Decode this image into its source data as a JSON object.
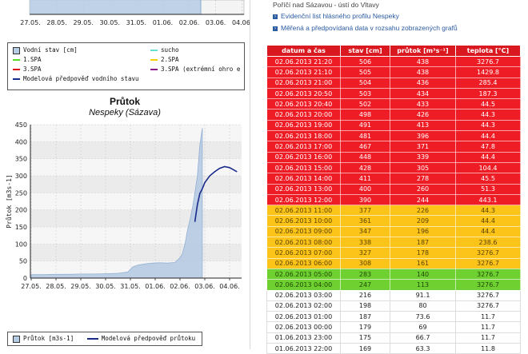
{
  "top_chart": {
    "x_ticks": [
      "27.05.",
      "28.05.",
      "29.05.",
      "30.05.",
      "31.05.",
      "01.06.",
      "02.06.",
      "03.06.",
      "04.06."
    ],
    "legend": [
      {
        "label": "Vodní stav [cm]",
        "kind": "square",
        "color": "#b6cbe4"
      },
      {
        "label": "sucho",
        "kind": "line",
        "color": "#66e0d0"
      },
      {
        "label": "1.SPA",
        "kind": "line",
        "color": "#55dd22"
      },
      {
        "label": "2.SPA",
        "kind": "line",
        "color": "#f4d000"
      },
      {
        "label": "3.SPA",
        "kind": "line",
        "color": "#e01010"
      },
      {
        "label": "3.SPA (extrémní ohro e",
        "kind": "line",
        "color": "#8a1a8a"
      },
      {
        "label": "Modelová předpověď vodního stavu",
        "kind": "line",
        "color": "#1a2a8a"
      }
    ]
  },
  "chart_data": {
    "type": "area",
    "title": "Průtok",
    "subtitle": "Nespeky (Sázava)",
    "ylabel": "Průtok [m3s-1]",
    "xlabel": "",
    "ylim": [
      0,
      450
    ],
    "y_ticks": [
      0,
      50,
      100,
      150,
      200,
      250,
      300,
      350,
      400,
      450
    ],
    "x_ticks": [
      "27.05.",
      "28.05.",
      "29.05.",
      "30.05.",
      "31.05.",
      "01.06.",
      "02.06.",
      "03.06.",
      "04.06."
    ],
    "series": [
      {
        "name": "Průtok [m3s-1]",
        "kind": "area",
        "color": "#b6cbe4",
        "x": [
          0,
          0.5,
          1,
          1.5,
          2,
          2.5,
          3,
          3.5,
          3.9,
          4.1,
          4.3,
          4.6,
          4.9,
          5.2,
          5.5,
          5.8,
          6.0,
          6.1,
          6.2,
          6.3,
          6.4,
          6.5,
          6.6,
          6.7,
          6.8,
          6.9
        ],
        "values": [
          10,
          10,
          11,
          11,
          12,
          12,
          13,
          14,
          18,
          33,
          38,
          42,
          44,
          45,
          44,
          46,
          60,
          72,
          100,
          140,
          170,
          205,
          250,
          300,
          390,
          440
        ]
      },
      {
        "name": "Modelová předpověď průtoku",
        "kind": "line",
        "color": "#1a2a8a",
        "x": [
          6.6,
          6.7,
          6.8,
          6.9,
          7.0,
          7.2,
          7.4,
          7.6,
          7.8,
          8.0,
          8.15,
          8.3
        ],
        "values": [
          165,
          215,
          248,
          262,
          280,
          300,
          312,
          322,
          327,
          324,
          318,
          312
        ]
      }
    ],
    "legend": [
      "Průtok [m3s-1]",
      "Modelová předpověď průtoku"
    ]
  },
  "right_panel": {
    "station": "Poříčí nad Sázavou - ústí do Vltavy",
    "links": [
      "Evidenční list hlásného profilu Nespeky",
      "Měřená a předpovídaná data v rozsahu zobrazených grafů"
    ]
  },
  "table": {
    "headers": [
      "datum a čas",
      "stav [cm]",
      "průtok [m³s⁻¹]",
      "teplota [°C]"
    ],
    "rows": [
      {
        "d": "02.06.2013 21:20",
        "s": "506",
        "q": "438",
        "t": "3276.7",
        "c": "red"
      },
      {
        "d": "02.06.2013 21:10",
        "s": "505",
        "q": "438",
        "t": "1429.8",
        "c": "red"
      },
      {
        "d": "02.06.2013 21:00",
        "s": "504",
        "q": "436",
        "t": "285.4",
        "c": "red"
      },
      {
        "d": "02.06.2013 20:50",
        "s": "503",
        "q": "434",
        "t": "187.3",
        "c": "red"
      },
      {
        "d": "02.06.2013 20:40",
        "s": "502",
        "q": "433",
        "t": "44.5",
        "c": "red"
      },
      {
        "d": "02.06.2013 20:00",
        "s": "498",
        "q": "426",
        "t": "44.3",
        "c": "red"
      },
      {
        "d": "02.06.2013 19:00",
        "s": "491",
        "q": "413",
        "t": "44.3",
        "c": "red"
      },
      {
        "d": "02.06.2013 18:00",
        "s": "481",
        "q": "396",
        "t": "44.4",
        "c": "red"
      },
      {
        "d": "02.06.2013 17:00",
        "s": "467",
        "q": "371",
        "t": "47.8",
        "c": "red"
      },
      {
        "d": "02.06.2013 16:00",
        "s": "448",
        "q": "339",
        "t": "44.4",
        "c": "red"
      },
      {
        "d": "02.06.2013 15:00",
        "s": "428",
        "q": "305",
        "t": "104.4",
        "c": "red"
      },
      {
        "d": "02.06.2013 14:00",
        "s": "411",
        "q": "278",
        "t": "45.5",
        "c": "red"
      },
      {
        "d": "02.06.2013 13:00",
        "s": "400",
        "q": "260",
        "t": "51.3",
        "c": "red"
      },
      {
        "d": "02.06.2013 12:00",
        "s": "390",
        "q": "244",
        "t": "443.1",
        "c": "red"
      },
      {
        "d": "02.06.2013 11:00",
        "s": "377",
        "q": "226",
        "t": "44.3",
        "c": "yellow"
      },
      {
        "d": "02.06.2013 10:00",
        "s": "361",
        "q": "209",
        "t": "44.4",
        "c": "yellow"
      },
      {
        "d": "02.06.2013 09:00",
        "s": "347",
        "q": "196",
        "t": "44.4",
        "c": "yellow"
      },
      {
        "d": "02.06.2013 08:00",
        "s": "338",
        "q": "187",
        "t": "238.6",
        "c": "yellow"
      },
      {
        "d": "02.06.2013 07:00",
        "s": "327",
        "q": "178",
        "t": "3276.7",
        "c": "yellow"
      },
      {
        "d": "02.06.2013 06:00",
        "s": "308",
        "q": "161",
        "t": "3276.7",
        "c": "yellow"
      },
      {
        "d": "02.06.2013 05:00",
        "s": "283",
        "q": "140",
        "t": "3276.7",
        "c": "green"
      },
      {
        "d": "02.06.2013 04:00",
        "s": "247",
        "q": "113",
        "t": "3276.7",
        "c": "green"
      },
      {
        "d": "02.06.2013 03:00",
        "s": "216",
        "q": "91.1",
        "t": "3276.7",
        "c": "white"
      },
      {
        "d": "02.06.2013 02:00",
        "s": "198",
        "q": "80",
        "t": "3276.7",
        "c": "white"
      },
      {
        "d": "02.06.2013 01:00",
        "s": "187",
        "q": "73.6",
        "t": "11.7",
        "c": "white"
      },
      {
        "d": "02.06.2013 00:00",
        "s": "179",
        "q": "69",
        "t": "11.7",
        "c": "white"
      },
      {
        "d": "01.06.2013 23:00",
        "s": "175",
        "q": "66.7",
        "t": "11.7",
        "c": "white"
      },
      {
        "d": "01.06.2013 22:00",
        "s": "169",
        "q": "63.3",
        "t": "11.8",
        "c": "white"
      }
    ]
  }
}
